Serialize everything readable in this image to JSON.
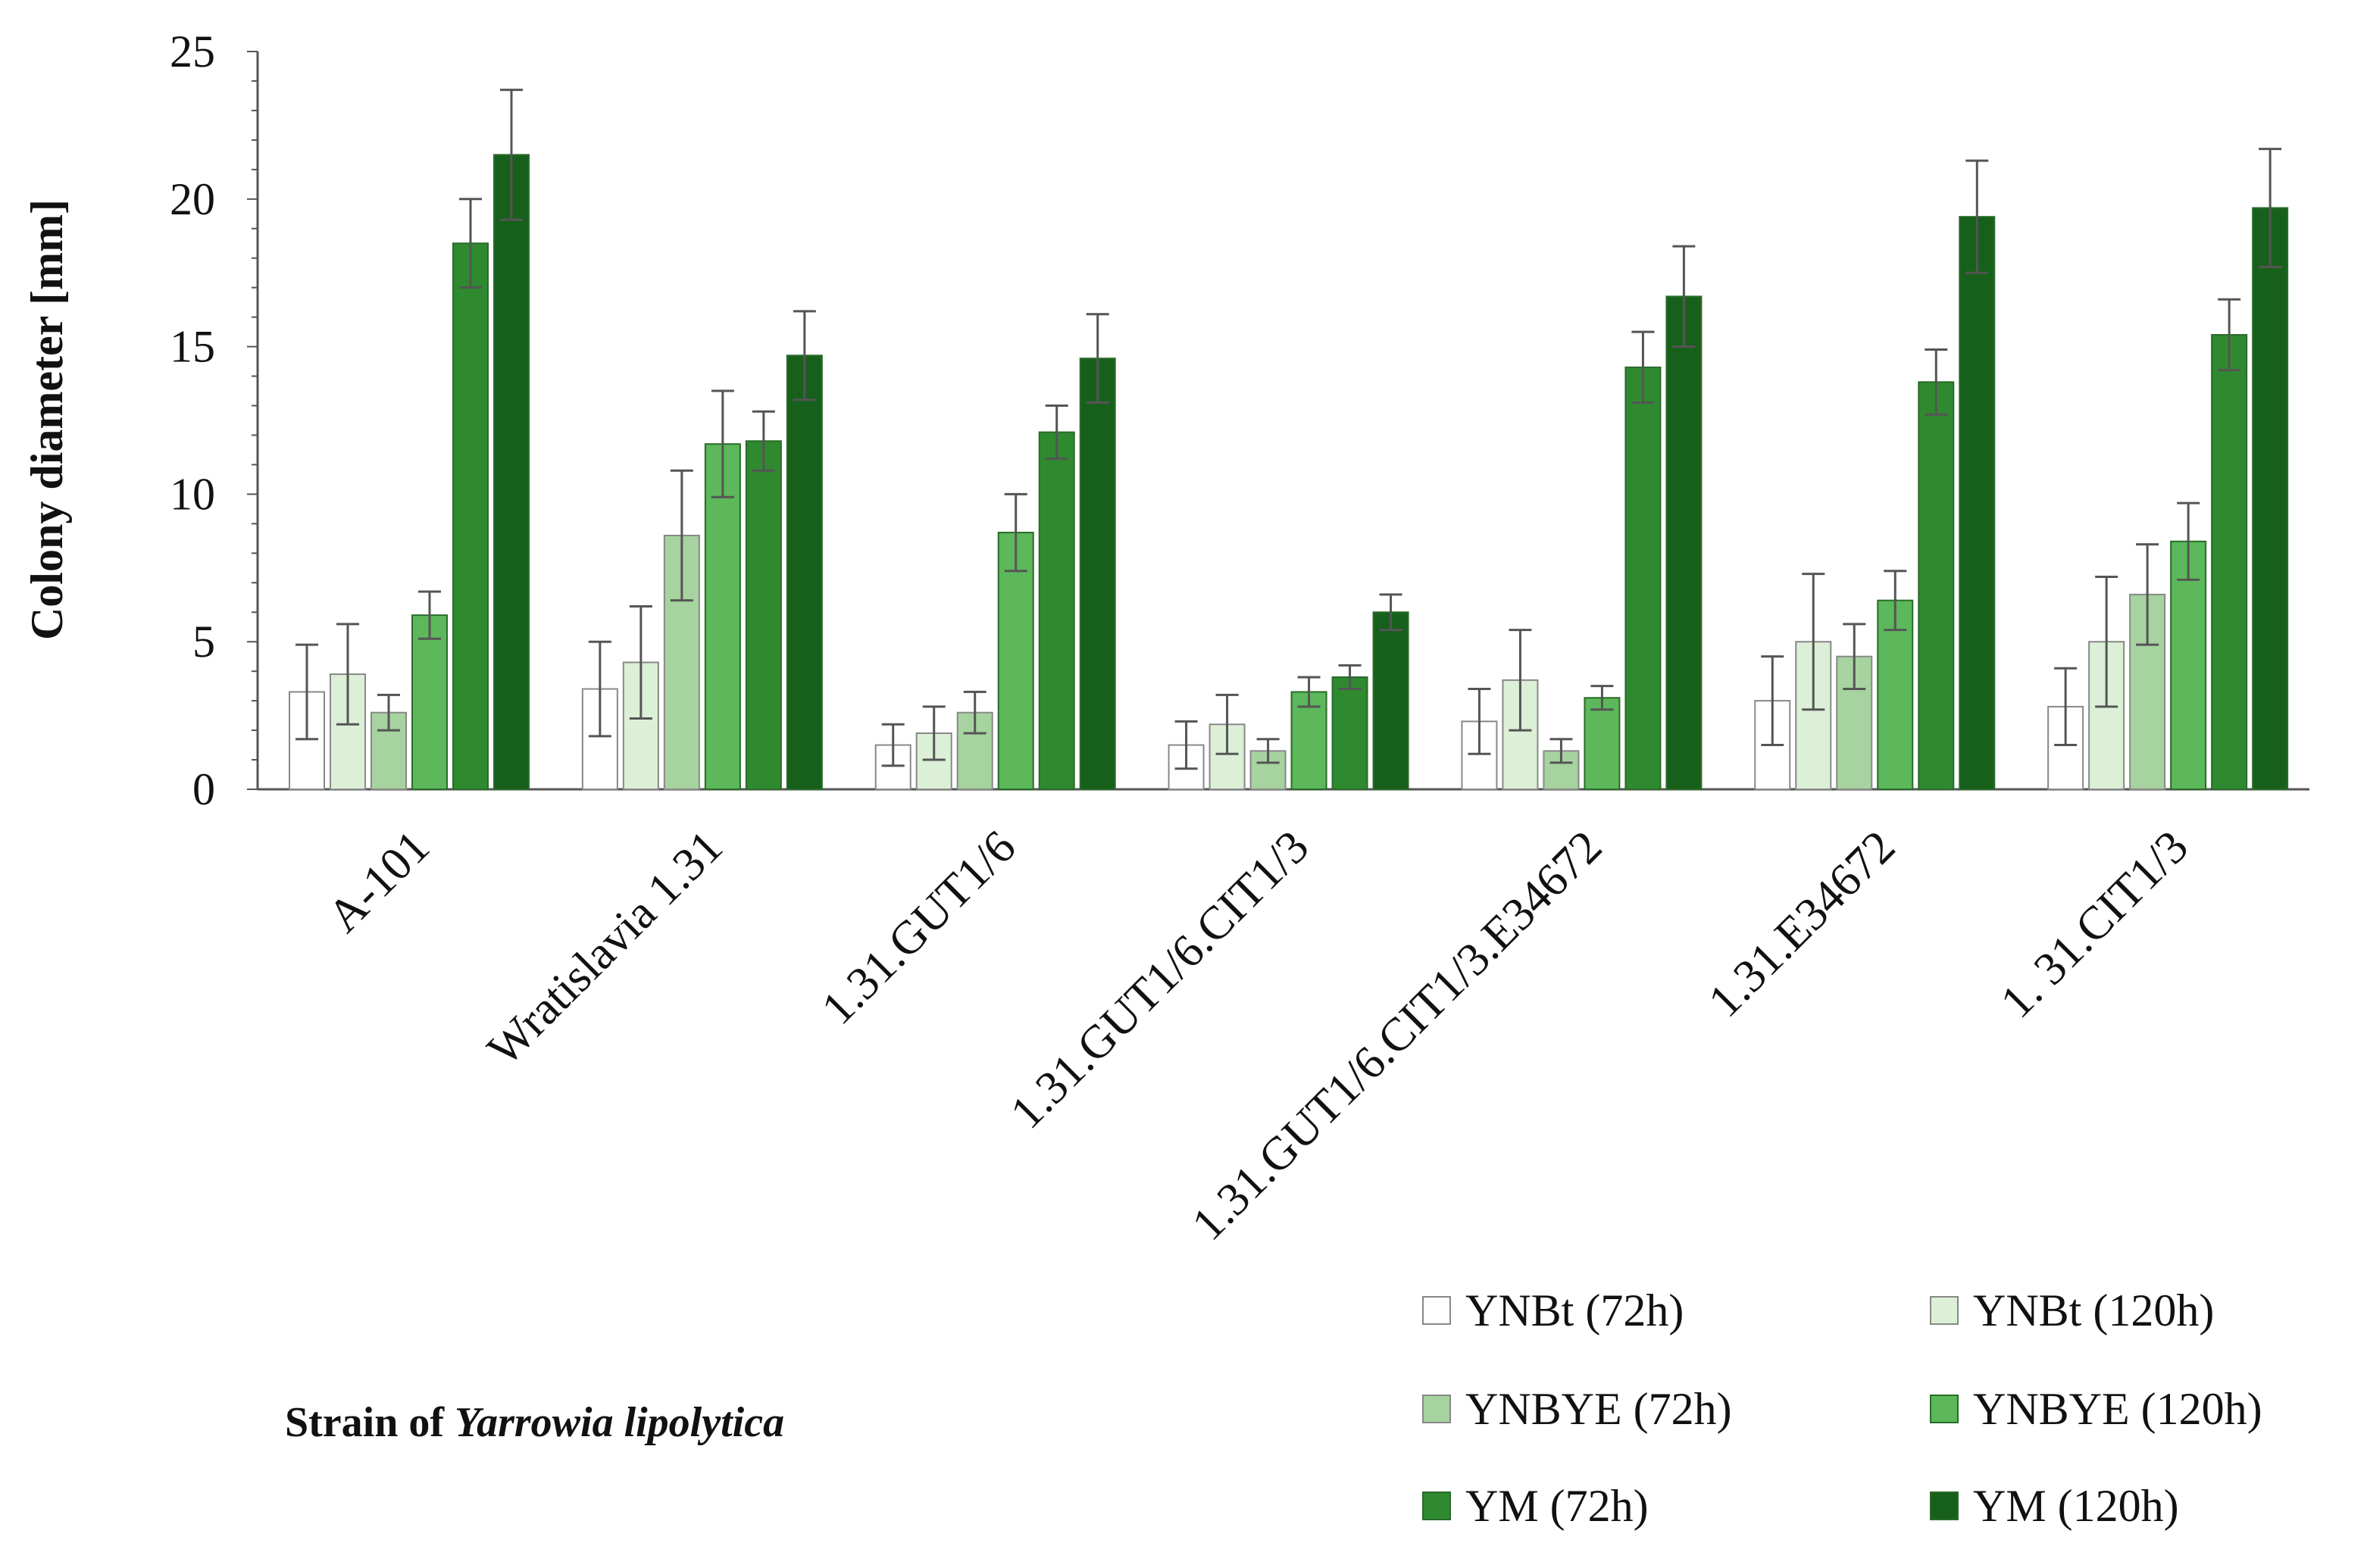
{
  "chart_data": {
    "type": "bar",
    "title": "",
    "ylabel": "Colony diameter [mm]",
    "xlabel_prefix": "Strain of ",
    "xlabel_species": "Yarrowia lipolytica",
    "ylim": [
      0,
      25
    ],
    "yticks": [
      "0",
      "5",
      "10",
      "15",
      "20",
      "25"
    ],
    "grid": false,
    "legend_position": "bottom-right",
    "categories": [
      "A-101",
      "Wratislavia 1.31",
      "1.31.GUT1/6",
      "1.31.GUT1/6.CIT1/3",
      "1.31.GUT1/6.CIT1/3.E34672",
      "1.31.E34672",
      "1. 31.CIT1/3"
    ],
    "series": [
      {
        "name": "YNBt (72h)",
        "color": "#ffffff",
        "values": [
          3.3,
          3.4,
          1.5,
          1.5,
          2.3,
          3.0,
          2.8
        ],
        "errors": [
          1.6,
          1.6,
          0.7,
          0.8,
          1.1,
          1.5,
          1.3
        ]
      },
      {
        "name": "YNBt (120h)",
        "color": "#dcf0d7",
        "values": [
          3.9,
          4.3,
          1.9,
          2.2,
          3.7,
          5.0,
          5.0
        ],
        "errors": [
          1.7,
          1.9,
          0.9,
          1.0,
          1.7,
          2.3,
          2.2
        ]
      },
      {
        "name": "YNBYE (72h)",
        "color": "#a6d39f",
        "values": [
          2.6,
          8.6,
          2.6,
          1.3,
          1.3,
          4.5,
          6.6
        ],
        "errors": [
          0.6,
          2.2,
          0.7,
          0.4,
          0.4,
          1.1,
          1.7
        ]
      },
      {
        "name": "YNBYE (120h)",
        "color": "#5cb85a",
        "values": [
          5.9,
          11.7,
          8.7,
          3.3,
          3.1,
          6.4,
          8.4
        ],
        "errors": [
          0.8,
          1.8,
          1.3,
          0.5,
          0.4,
          1.0,
          1.3
        ]
      },
      {
        "name": "YM (72h)",
        "color": "#2f8a2f",
        "values": [
          18.5,
          11.8,
          12.1,
          3.8,
          14.3,
          13.8,
          15.4
        ],
        "errors": [
          1.5,
          1.0,
          0.9,
          0.4,
          1.2,
          1.1,
          1.2
        ]
      },
      {
        "name": "YM (120h)",
        "color": "#17601c",
        "values": [
          21.5,
          14.7,
          14.6,
          6.0,
          16.7,
          19.4,
          19.7
        ],
        "errors": [
          2.2,
          1.5,
          1.5,
          0.6,
          1.7,
          1.9,
          2.0
        ]
      }
    ]
  }
}
